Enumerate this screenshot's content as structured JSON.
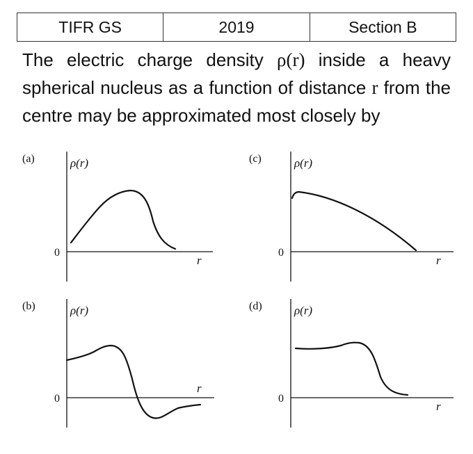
{
  "header": {
    "source": "TIFR GS",
    "year": "2019",
    "section": "Section B"
  },
  "question": {
    "part1": "The electric charge density ",
    "rho": "ρ(r)",
    "part2": " inside a heavy spherical nucleus as a function of distance ",
    "r": "r",
    "part3": " from the centre may be approximated most closely by"
  },
  "options": [
    {
      "label": "(a)",
      "ylabel": "ρ(r)",
      "xlabel": "r",
      "zero": "0"
    },
    {
      "label": "(c)",
      "ylabel": "ρ(r)",
      "xlabel": "r",
      "zero": "0"
    },
    {
      "label": "(b)",
      "ylabel": "ρ(r)",
      "xlabel": "r",
      "zero": "0"
    },
    {
      "label": "(d)",
      "ylabel": "ρ(r)",
      "xlabel": "r",
      "zero": "0"
    }
  ]
}
